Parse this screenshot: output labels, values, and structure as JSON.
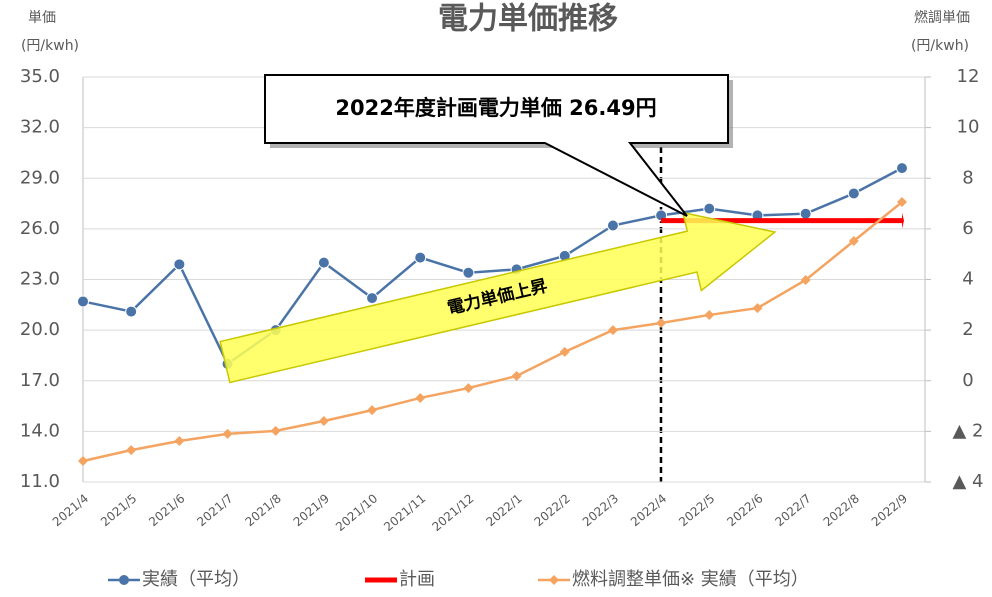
{
  "chart_data": {
    "type": "line",
    "title": "電力単価推移",
    "y_label": "単価",
    "y_unit": "(円/kwh)",
    "y2_label": "燃調単価",
    "y2_unit": "(円/kwh)",
    "categories": [
      "2021/4",
      "2021/5",
      "2021/6",
      "2021/7",
      "2021/8",
      "2021/9",
      "2021/10",
      "2021/11",
      "2021/12",
      "2022/1",
      "2022/2",
      "2022/3",
      "2022/4",
      "2022/5",
      "2022/6",
      "2022/7",
      "2022/8",
      "2022/9"
    ],
    "series": [
      {
        "name": "実績（平均）",
        "color": "#4a74a8",
        "values": [
          21.7,
          21.1,
          23.9,
          18.0,
          20.0,
          24.0,
          21.9,
          24.3,
          23.4,
          23.6,
          24.4,
          26.2,
          26.8,
          27.2,
          26.8,
          26.9,
          28.1,
          29.6
        ]
      },
      {
        "name": "計画",
        "color": "#ff0000",
        "values": [
          null,
          null,
          null,
          null,
          null,
          null,
          null,
          null,
          null,
          null,
          null,
          null,
          26.49,
          26.49,
          26.49,
          26.49,
          26.49,
          26.49
        ]
      },
      {
        "name": "燃料調整単価※ 実績（平均）",
        "color": "#f4a460",
        "axis": "y2",
        "values": [
          -3.17,
          -2.74,
          -2.38,
          -2.1,
          -1.98,
          -1.59,
          -1.16,
          -0.68,
          -0.29,
          0.19,
          1.14,
          2.0,
          2.28,
          2.6,
          2.87,
          3.98,
          5.52,
          7.06
        ]
      }
    ],
    "ylim": [
      11,
      35
    ],
    "yticks": [
      {
        "value": 11,
        "label": "11.0"
      },
      {
        "value": 14,
        "label": "14.0"
      },
      {
        "value": 17,
        "label": "17.0"
      },
      {
        "value": 20,
        "label": "20.0"
      },
      {
        "value": 23,
        "label": "23.0"
      },
      {
        "value": 26,
        "label": "26.0"
      },
      {
        "value": 29,
        "label": "29.0"
      },
      {
        "value": 32,
        "label": "32.0"
      },
      {
        "value": 35,
        "label": "35.0"
      }
    ],
    "y2lim": [
      -4,
      12
    ],
    "y2ticks": [
      {
        "value": -4,
        "label": "▲ 4"
      },
      {
        "value": -2,
        "label": "▲ 2"
      },
      0,
      2,
      4,
      6,
      8,
      10,
      12
    ],
    "annotations": [
      "2022年度計画電力単価 26.49円",
      "電力単価上昇"
    ]
  }
}
